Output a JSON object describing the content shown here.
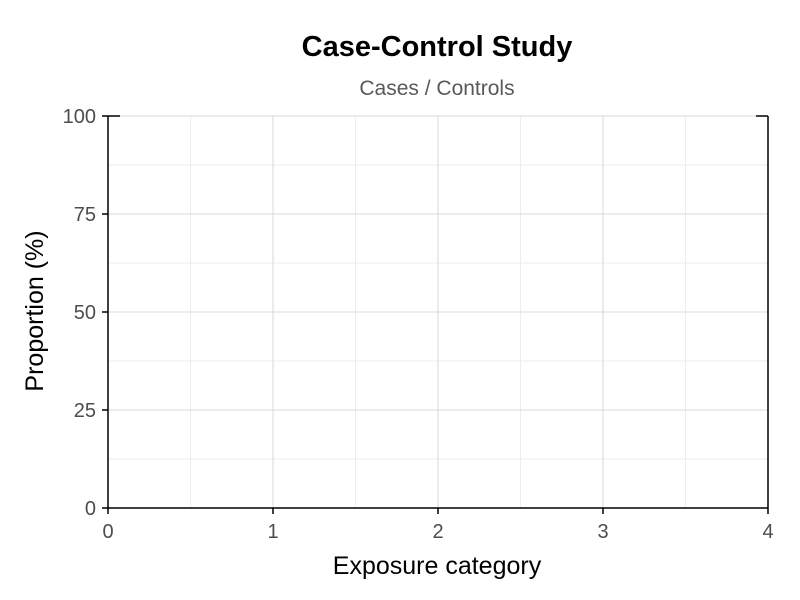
{
  "chart_data": {
    "type": "scatter",
    "title": "Case-Control Study",
    "subtitle": "Cases / Controls",
    "xlabel": "Exposure category",
    "ylabel": "Proportion (%)",
    "xlim": [
      0,
      4
    ],
    "ylim": [
      0,
      100
    ],
    "x_ticks": [
      0,
      1,
      2,
      3,
      4
    ],
    "x_tick_labels": [
      "0",
      "1",
      "2",
      "3",
      "4"
    ],
    "y_ticks": [
      0,
      25,
      50,
      75,
      100
    ],
    "y_tick_labels": [
      "0",
      "25",
      "50",
      "75",
      "100"
    ],
    "x_minor_ticks": [
      0.5,
      1.5,
      2.5,
      3.5
    ],
    "y_minor_ticks": [
      12.5,
      37.5,
      62.5,
      87.5
    ],
    "grid": true,
    "series": [],
    "colors": {
      "axis": "#000000",
      "grid_major": "#d9d9d9",
      "grid_minor": "#ededed",
      "tick_text": "#4d4d4d",
      "subtitle_text": "#595959"
    }
  }
}
